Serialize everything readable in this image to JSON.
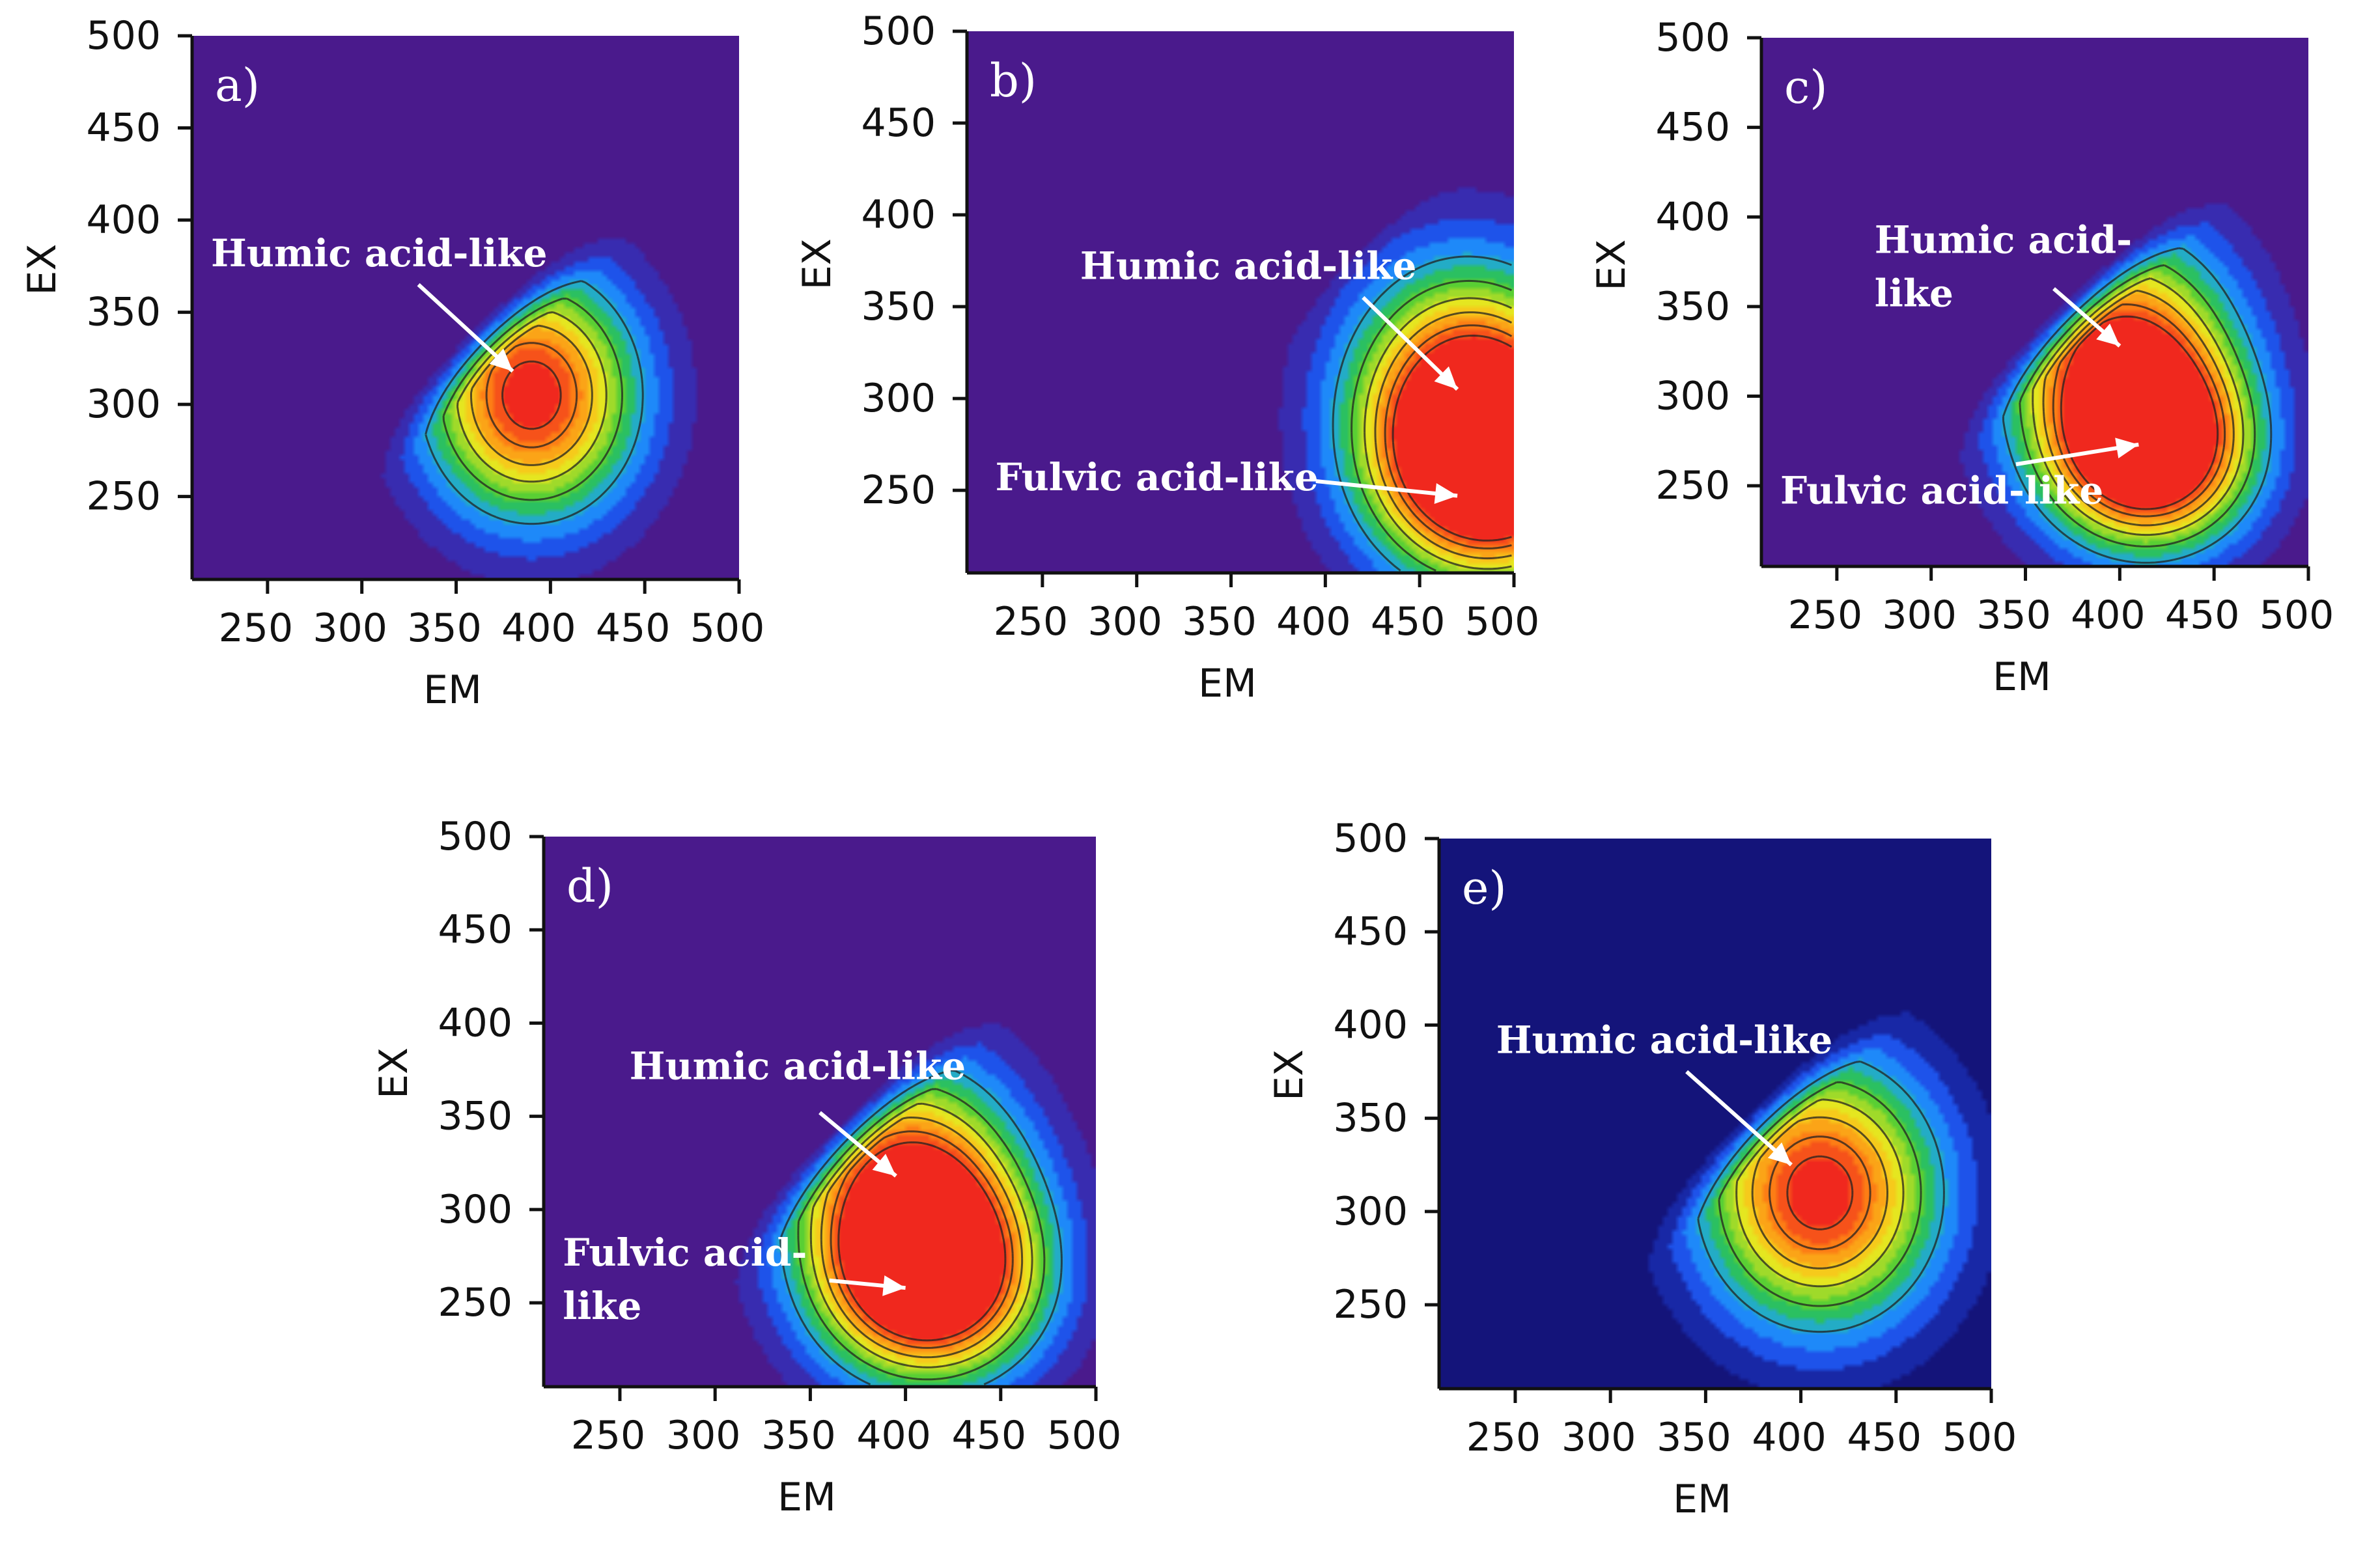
{
  "colors": {
    "background_purple": "#4a1a8c",
    "background_navy": "#14147a",
    "blue": "#1e46e6",
    "cyan": "#1ea0ff",
    "green": "#2ec83a",
    "yellow": "#f2e81e",
    "orange": "#ff8a14",
    "red": "#f0281e",
    "label_white": "#ffffff"
  },
  "chart_data": [
    {
      "type": "heatmap",
      "panel": "a)",
      "xlabel": "EM",
      "ylabel": "EX",
      "xlim": [
        210,
        500
      ],
      "ylim": [
        205,
        500
      ],
      "xticks": [
        "250",
        "300",
        "350",
        "400",
        "450",
        "500"
      ],
      "yticks": [
        "250",
        "300",
        "350",
        "400",
        "450",
        "500"
      ],
      "background": "purple",
      "peaks": [
        {
          "name": "Humic acid-like",
          "em": 390,
          "ex": 305,
          "intensity": 1.0,
          "spread_em": 38,
          "spread_ex": 45
        }
      ],
      "labels": [
        {
          "text_lines": [
            "Humic acid-like"
          ],
          "text_em": 220,
          "text_ex": 375,
          "arrow_from": [
            330,
            365
          ],
          "arrow_to": [
            380,
            318
          ]
        }
      ]
    },
    {
      "type": "heatmap",
      "panel": "b)",
      "xlabel": "EM",
      "ylabel": "EX",
      "xlim": [
        210,
        500
      ],
      "ylim": [
        205,
        500
      ],
      "xticks": [
        "250",
        "300",
        "350",
        "400",
        "450",
        "500"
      ],
      "yticks": [
        "250",
        "300",
        "350",
        "400",
        "450",
        "500"
      ],
      "background": "purple",
      "peaks": [
        {
          "name": "Humic acid-like",
          "em": 475,
          "ex": 300,
          "intensity": 0.95,
          "spread_em": 42,
          "spread_ex": 50
        },
        {
          "name": "Fulvic acid-like",
          "em": 490,
          "ex": 260,
          "intensity": 1.0,
          "spread_em": 40,
          "spread_ex": 40
        }
      ],
      "labels": [
        {
          "text_lines": [
            "Humic acid-like"
          ],
          "text_em": 270,
          "text_ex": 365,
          "arrow_from": [
            420,
            355
          ],
          "arrow_to": [
            470,
            305
          ]
        },
        {
          "text_lines": [
            "Fulvic acid-like"
          ],
          "text_em": 225,
          "text_ex": 250,
          "arrow_from": [
            395,
            255
          ],
          "arrow_to": [
            470,
            247
          ]
        }
      ]
    },
    {
      "type": "heatmap",
      "panel": "c)",
      "xlabel": "EM",
      "ylabel": "EX",
      "xlim": [
        210,
        500
      ],
      "ylim": [
        205,
        500
      ],
      "xticks": [
        "250",
        "300",
        "350",
        "400",
        "450",
        "500"
      ],
      "yticks": [
        "250",
        "300",
        "350",
        "400",
        "450",
        "500"
      ],
      "background": "purple",
      "peaks": [
        {
          "name": "Humic acid-like",
          "em": 402,
          "ex": 315,
          "intensity": 1.0,
          "spread_em": 40,
          "spread_ex": 50
        },
        {
          "name": "Fulvic acid-like",
          "em": 418,
          "ex": 268,
          "intensity": 0.95,
          "spread_em": 35,
          "spread_ex": 35
        }
      ],
      "labels": [
        {
          "text_lines": [
            "Humic acid-",
            "like"
          ],
          "text_em": 270,
          "text_ex": 380,
          "arrow_from": [
            365,
            360
          ],
          "arrow_to": [
            400,
            328
          ]
        },
        {
          "text_lines": [
            "Fulvic acid-like"
          ],
          "text_em": 220,
          "text_ex": 240,
          "arrow_from": [
            345,
            262
          ],
          "arrow_to": [
            410,
            273
          ]
        }
      ]
    },
    {
      "type": "heatmap",
      "panel": "d)",
      "xlabel": "EM",
      "ylabel": "EX",
      "xlim": [
        210,
        500
      ],
      "ylim": [
        205,
        500
      ],
      "xticks": [
        "250",
        "300",
        "350",
        "400",
        "450",
        "500"
      ],
      "yticks": [
        "250",
        "300",
        "350",
        "400",
        "450",
        "500"
      ],
      "background": "purple",
      "peaks": [
        {
          "name": "Humic acid-like",
          "em": 402,
          "ex": 305,
          "intensity": 1.0,
          "spread_em": 40,
          "spread_ex": 48
        },
        {
          "name": "Fulvic acid-like",
          "em": 415,
          "ex": 262,
          "intensity": 0.95,
          "spread_em": 38,
          "spread_ex": 36
        }
      ],
      "labels": [
        {
          "text_lines": [
            "Humic acid-like"
          ],
          "text_em": 255,
          "text_ex": 370,
          "arrow_from": [
            355,
            352
          ],
          "arrow_to": [
            395,
            318
          ]
        },
        {
          "text_lines": [
            "Fulvic acid-",
            "like"
          ],
          "text_em": 220,
          "text_ex": 270,
          "arrow_from": [
            360,
            262
          ],
          "arrow_to": [
            400,
            258
          ]
        }
      ]
    },
    {
      "type": "heatmap",
      "panel": "e)",
      "xlabel": "EM",
      "ylabel": "EX",
      "xlim": [
        210,
        500
      ],
      "ylim": [
        205,
        500
      ],
      "xticks": [
        "250",
        "300",
        "350",
        "400",
        "450",
        "500"
      ],
      "yticks": [
        "250",
        "300",
        "350",
        "400",
        "450",
        "500"
      ],
      "background": "navy",
      "peaks": [
        {
          "name": "Humic acid-like",
          "em": 410,
          "ex": 310,
          "intensity": 1.0,
          "spread_em": 42,
          "spread_ex": 48
        }
      ],
      "labels": [
        {
          "text_lines": [
            "Humic acid-like"
          ],
          "text_em": 240,
          "text_ex": 385,
          "arrow_from": [
            340,
            375
          ],
          "arrow_to": [
            395,
            325
          ]
        }
      ]
    }
  ]
}
